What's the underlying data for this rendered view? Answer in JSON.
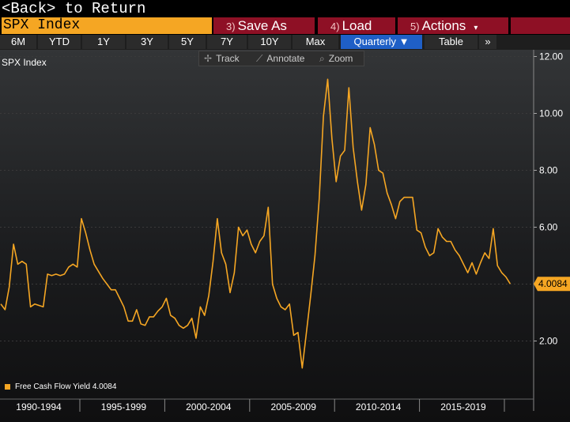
{
  "header": {
    "back_text": "<Back> to Return"
  },
  "command_bar": {
    "ticker": "SPX Index",
    "buttons": [
      {
        "num": "3)",
        "label": "Save As"
      },
      {
        "num": "4)",
        "label": "Load"
      },
      {
        "num": "5)",
        "label": "Actions"
      }
    ],
    "actions_caret": "▾"
  },
  "range_bar": {
    "items": [
      "6M",
      "YTD",
      "1Y",
      "3Y",
      "5Y",
      "7Y",
      "10Y",
      "Max"
    ],
    "period": "Quarterly ▼",
    "table": "Table",
    "more": "»"
  },
  "toolbar": {
    "track": "Track",
    "annotate": "Annotate",
    "zoom": "Zoom"
  },
  "chart": {
    "security_label": "SPX Index",
    "last_value_label": "4.0084"
  },
  "legend": {
    "label": "Free Cash Flow Yield",
    "value": "4.0084",
    "color": "#f5a623"
  },
  "chart_data": {
    "type": "line",
    "title": "SPX Index",
    "series_name": "Free Cash Flow Yield",
    "last_value": 4.0084,
    "color": "#f5a623",
    "ylim": [
      0,
      12
    ],
    "yticks": [
      "12.00",
      "10.00",
      "8.00",
      "6.00",
      "4.00",
      "2.00"
    ],
    "ytick_values": [
      12,
      10,
      8,
      6,
      4,
      2
    ],
    "xticks": [
      "1990-1994",
      "1995-1999",
      "2000-2004",
      "2005-2009",
      "2010-2014",
      "2015-2019"
    ],
    "x_start": 1990.0,
    "x_step": 0.25,
    "values": [
      3.3,
      3.1,
      3.9,
      5.4,
      4.7,
      4.8,
      4.7,
      3.2,
      3.3,
      3.25,
      3.2,
      4.35,
      4.3,
      4.35,
      4.3,
      4.35,
      4.6,
      4.7,
      4.6,
      6.3,
      5.8,
      5.2,
      4.7,
      4.45,
      4.2,
      4.0,
      3.8,
      3.8,
      3.5,
      3.2,
      2.7,
      2.7,
      3.1,
      2.6,
      2.55,
      2.85,
      2.85,
      3.05,
      3.2,
      3.5,
      2.9,
      2.8,
      2.55,
      2.45,
      2.55,
      2.8,
      2.1,
      3.2,
      2.9,
      3.6,
      4.8,
      6.3,
      5.1,
      4.7,
      3.7,
      4.4,
      6.0,
      5.7,
      5.9,
      5.4,
      5.1,
      5.5,
      5.7,
      6.7,
      4.0,
      3.5,
      3.2,
      3.1,
      3.3,
      2.2,
      2.3,
      1.05,
      2.3,
      3.6,
      5.0,
      7.0,
      9.9,
      11.2,
      9.1,
      7.6,
      8.5,
      8.7,
      10.9,
      8.8,
      7.6,
      6.6,
      7.5,
      9.5,
      8.9,
      8.0,
      7.9,
      7.2,
      6.8,
      6.3,
      6.9,
      7.05,
      7.05,
      7.05,
      5.9,
      5.8,
      5.3,
      5.0,
      5.1,
      5.95,
      5.65,
      5.5,
      5.5,
      5.2,
      5.0,
      4.7,
      4.4,
      4.75,
      4.35,
      4.75,
      5.1,
      4.9,
      5.95,
      4.65,
      4.4,
      4.25,
      4.0084
    ]
  }
}
